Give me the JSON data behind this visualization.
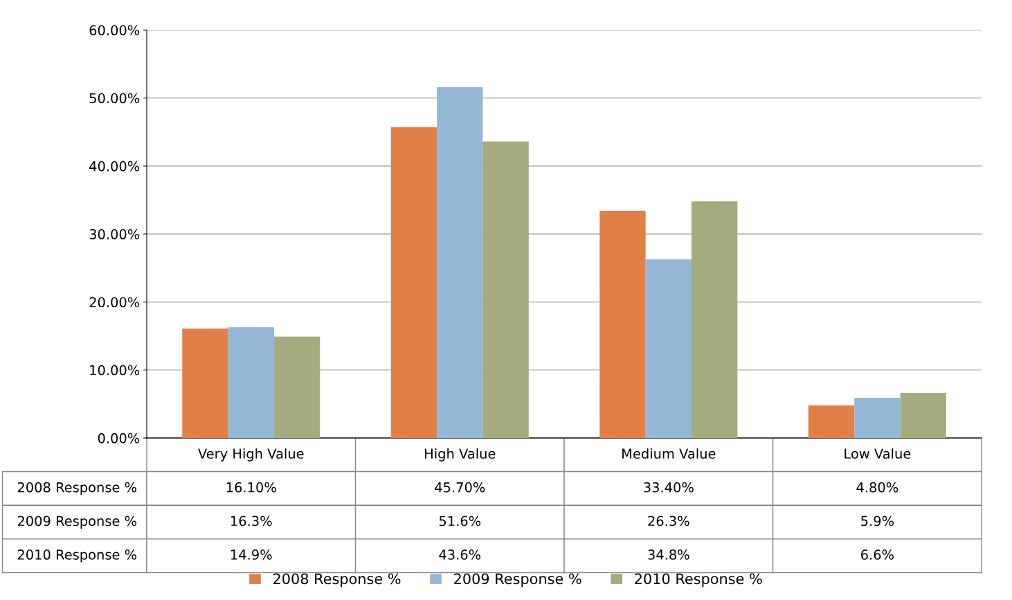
{
  "chart_data": {
    "type": "bar",
    "categories": [
      "Very High Value",
      "High Value",
      "Medium Value",
      "Low Value"
    ],
    "series": [
      {
        "name": "2008 Response %",
        "color": "#e07f48",
        "values": [
          16.1,
          45.7,
          33.4,
          4.8
        ],
        "value_labels": [
          "16.10%",
          "45.70%",
          "33.40%",
          "4.80%"
        ]
      },
      {
        "name": "2009 Response %",
        "color": "#95b7d6",
        "values": [
          16.3,
          51.6,
          26.3,
          5.9
        ],
        "value_labels": [
          "16.3%",
          "51.6%",
          "26.3%",
          "5.9%"
        ]
      },
      {
        "name": "2010 Response %",
        "color": "#a4ab7e",
        "values": [
          14.9,
          43.6,
          34.8,
          6.6
        ],
        "value_labels": [
          "14.9%",
          "43.6%",
          "34.8%",
          "6.6%"
        ]
      }
    ],
    "ylim": [
      0,
      60
    ],
    "yticks": [
      {
        "value": 0,
        "label": "0.00%"
      },
      {
        "value": 10,
        "label": "10.00%"
      },
      {
        "value": 20,
        "label": "20.00%"
      },
      {
        "value": 30,
        "label": "30.00%"
      },
      {
        "value": 40,
        "label": "40.00%"
      },
      {
        "value": 50,
        "label": "50.00%"
      },
      {
        "value": 60,
        "label": "60.00%"
      }
    ],
    "grid": "y",
    "legend": "bottom"
  }
}
